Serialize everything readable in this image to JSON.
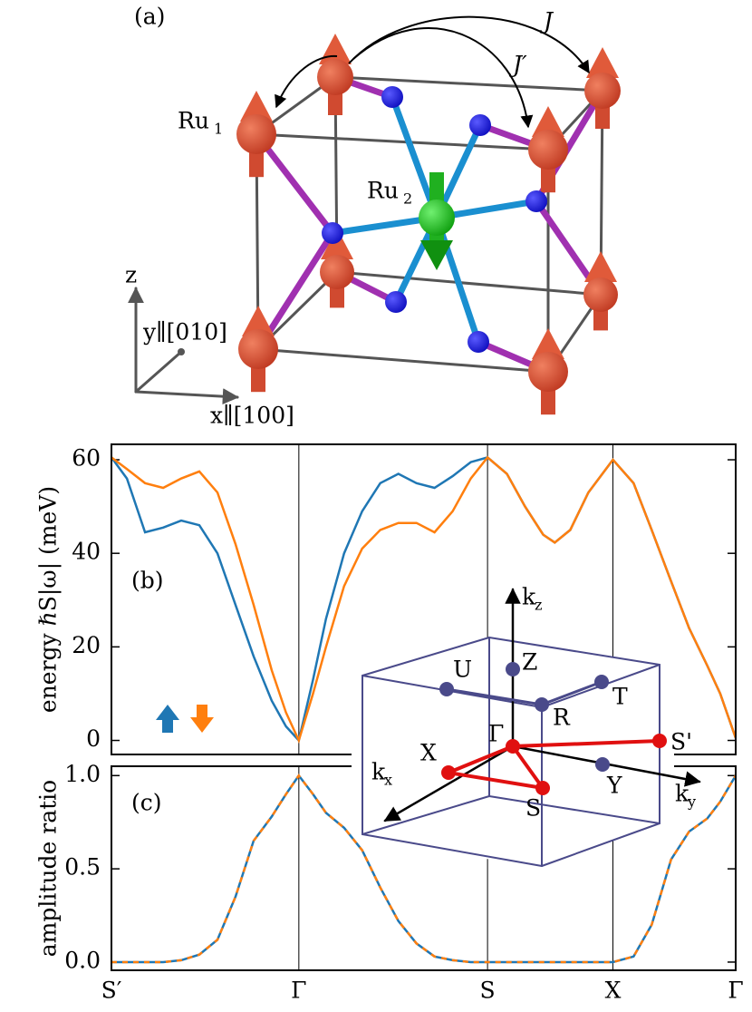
{
  "panel_a": {
    "label": "(a)",
    "J": "J",
    "J_prime": "J′",
    "ru1": "Ru",
    "ru1_sub": "1",
    "ru2": "Ru",
    "ru2_sub": "2",
    "z_axis": "z",
    "y_axis": "y∥[010]",
    "x_axis": "x∥[100]"
  },
  "chart_data": [
    {
      "type": "line",
      "panel_label": "(b)",
      "ylabel": "energy ℏS|ω| (meV)",
      "x": [
        0,
        0.12,
        0.26,
        0.4,
        0.54,
        0.68,
        0.82,
        0.96,
        1.1,
        1.24,
        1.35,
        1.45,
        1.56,
        1.66,
        1.8,
        1.94,
        2.08,
        2.22,
        2.36,
        2.5,
        2.64,
        2.78,
        2.91,
        3.06,
        3.2,
        3.34,
        3.43,
        3.55,
        3.69,
        3.88,
        4.04,
        4.18,
        4.33,
        4.47,
        4.61,
        4.71,
        4.83
      ],
      "series": [
        {
          "color": "#1f77b4",
          "values": [
            60.5,
            56,
            44.5,
            45.5,
            47,
            46,
            40,
            29,
            18,
            8.5,
            3,
            0,
            13,
            26,
            40,
            49,
            55,
            57,
            55,
            54,
            56.5,
            59.5,
            60.5,
            57,
            50,
            44,
            42.3,
            45,
            53,
            60,
            55,
            45,
            34,
            24,
            16,
            10,
            0.5
          ]
        },
        {
          "color": "#ff7f0e",
          "values": [
            60.5,
            58,
            55,
            54,
            56,
            57.5,
            53,
            42,
            29,
            15,
            6,
            0,
            10,
            20,
            33,
            41,
            45,
            46.5,
            46.5,
            44.5,
            49,
            56,
            60.5,
            57,
            50,
            44,
            42.3,
            45,
            53,
            60,
            55,
            45,
            34,
            24,
            16,
            10,
            0.5
          ]
        }
      ],
      "xlim": [
        0,
        4.83
      ],
      "xticks": [
        0,
        1.45,
        2.91,
        3.88,
        4.83
      ],
      "grid": true,
      "ylim": [
        -3,
        63.3
      ],
      "yticks": [
        0,
        20,
        40,
        60
      ]
    },
    {
      "type": "line",
      "panel_label": "(c)",
      "ylabel": "amplitude ratio",
      "line_style": "dashed",
      "x": [
        0,
        0.12,
        0.26,
        0.4,
        0.54,
        0.68,
        0.82,
        0.96,
        1.1,
        1.24,
        1.35,
        1.45,
        1.56,
        1.66,
        1.8,
        1.94,
        2.08,
        2.22,
        2.36,
        2.5,
        2.64,
        2.78,
        2.91,
        3.06,
        3.2,
        3.34,
        3.43,
        3.55,
        3.69,
        3.88,
        4.04,
        4.18,
        4.33,
        4.47,
        4.61,
        4.71,
        4.83
      ],
      "series": [
        {
          "color": "#1f77b4",
          "values": [
            0,
            0,
            0,
            0,
            0.01,
            0.04,
            0.12,
            0.35,
            0.65,
            0.78,
            0.9,
            1.0,
            0.9,
            0.8,
            0.72,
            0.6,
            0.4,
            0.22,
            0.1,
            0.03,
            0.01,
            0,
            0,
            0,
            0,
            0,
            0,
            0,
            0,
            0,
            0.03,
            0.2,
            0.55,
            0.7,
            0.77,
            0.86,
            1.0
          ]
        },
        {
          "color": "#ff7f0e",
          "values": [
            0,
            0,
            0,
            0,
            0.01,
            0.04,
            0.12,
            0.35,
            0.65,
            0.78,
            0.9,
            1.0,
            0.9,
            0.8,
            0.72,
            0.6,
            0.4,
            0.22,
            0.1,
            0.03,
            0.01,
            0,
            0,
            0,
            0,
            0,
            0,
            0,
            0,
            0,
            0.03,
            0.2,
            0.55,
            0.7,
            0.77,
            0.86,
            1.0
          ]
        }
      ],
      "xlim": [
        0,
        4.83
      ],
      "grid": true,
      "xticks": [
        {
          "value": 0,
          "label": "S′"
        },
        {
          "value": 1.45,
          "label": "Γ"
        },
        {
          "value": 2.91,
          "label": "S"
        },
        {
          "value": 3.88,
          "label": "X"
        },
        {
          "value": 4.83,
          "label": "Γ"
        }
      ],
      "ylim": [
        -0.044,
        1.05
      ],
      "yticks": [
        {
          "value": 0,
          "label": "0.0"
        },
        {
          "value": 0.5,
          "label": "0.5"
        },
        {
          "value": 1,
          "label": "1.0"
        }
      ]
    }
  ],
  "inset": {
    "U": "U",
    "Z": "Z",
    "T": "T",
    "R": "R",
    "Gamma": "Γ",
    "S_prime": "S'",
    "X": "X",
    "Y": "Y",
    "S": "S",
    "kx": "k",
    "kx_sub": "x",
    "ky": "k",
    "ky_sub": "y",
    "kz": "k",
    "kz_sub": "z"
  }
}
